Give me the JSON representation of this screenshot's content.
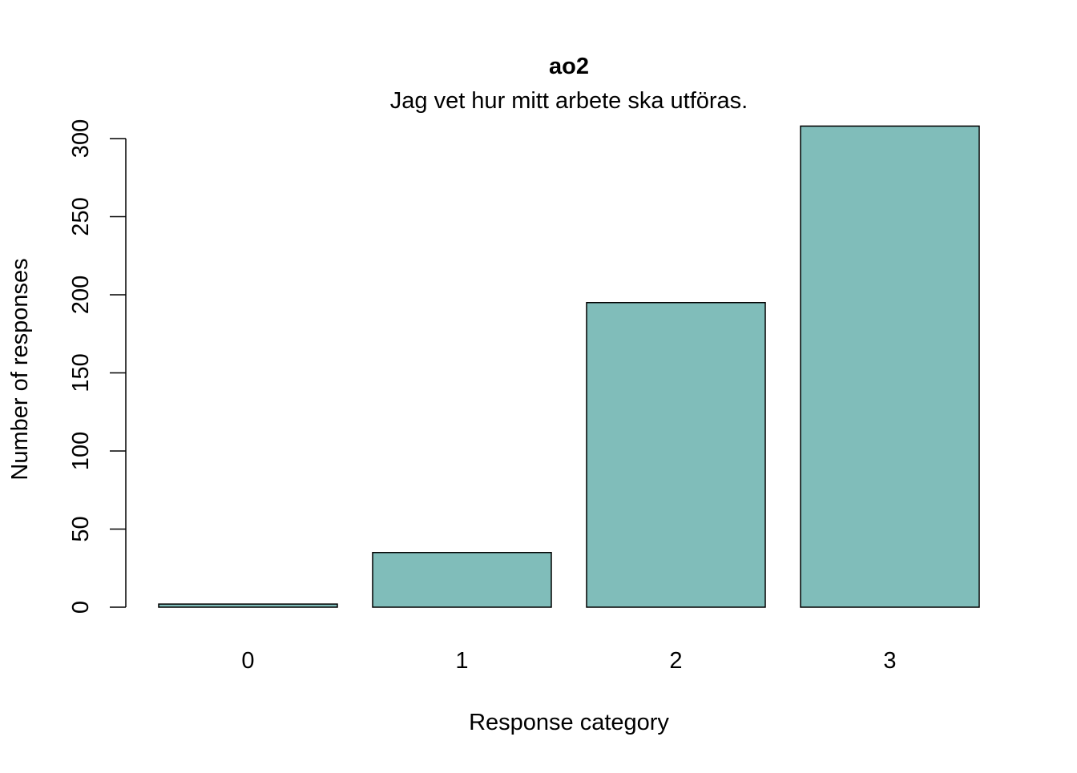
{
  "chart_data": {
    "type": "bar",
    "title": "ao2",
    "subtitle": "Jag vet hur mitt arbete ska utföras.",
    "xlabel": "Response category",
    "ylabel": "Number of responses",
    "categories": [
      "0",
      "1",
      "2",
      "3"
    ],
    "values": [
      2,
      35,
      195,
      308
    ],
    "ylim": [
      0,
      300
    ],
    "yticks": [
      0,
      50,
      100,
      150,
      200,
      250,
      300
    ],
    "ytick_labels": [
      "0",
      "50",
      "100",
      "150",
      "200",
      "250",
      "300"
    ],
    "bar_color": "#80BDBA",
    "bar_edge_color": "#000000",
    "grid": false,
    "legend": "none"
  }
}
